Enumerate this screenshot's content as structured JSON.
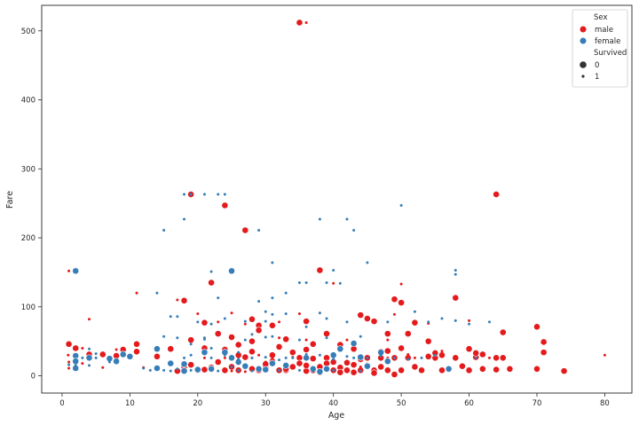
{
  "chart_data": {
    "type": "scatter",
    "xlabel": "Age",
    "ylabel": "Fare",
    "xlim": [
      -3,
      84
    ],
    "ylim": [
      -25,
      537
    ],
    "xticks": [
      0,
      10,
      20,
      30,
      40,
      50,
      60,
      70,
      80
    ],
    "yticks": [
      0,
      100,
      200,
      300,
      400,
      500
    ],
    "grid": false,
    "legend_position": "top-right",
    "legend": {
      "hue_title": "Sex",
      "hue_entries": [
        {
          "label": "male",
          "color": "#e41a1c"
        },
        {
          "label": "female",
          "color": "#377eb8"
        }
      ],
      "size_title": "Survived",
      "size_entries": [
        {
          "label": "0",
          "size": "large"
        },
        {
          "label": "1",
          "size": "small"
        }
      ]
    },
    "series": [
      {
        "name": "male",
        "survived": "0",
        "color": "#e41a1c",
        "points": [
          [
            35,
            512
          ],
          [
            19,
            263
          ],
          [
            64,
            263
          ],
          [
            24,
            247
          ],
          [
            27,
            211
          ],
          [
            38,
            153
          ],
          [
            22,
            135
          ],
          [
            58,
            113
          ],
          [
            49,
            111
          ],
          [
            50,
            106
          ],
          [
            18,
            109
          ],
          [
            28,
            82
          ],
          [
            45,
            83
          ],
          [
            44,
            88
          ],
          [
            46,
            79
          ],
          [
            36,
            79
          ],
          [
            21,
            77
          ],
          [
            29,
            73
          ],
          [
            70,
            71
          ],
          [
            31,
            73
          ],
          [
            2,
            40
          ],
          [
            1,
            46
          ],
          [
            4,
            31
          ],
          [
            6,
            31
          ],
          [
            8,
            29
          ],
          [
            9,
            38
          ],
          [
            11,
            46
          ],
          [
            11,
            35
          ],
          [
            14,
            28
          ],
          [
            16,
            39
          ],
          [
            19,
            52
          ],
          [
            23,
            61
          ],
          [
            25,
            56
          ],
          [
            28,
            50
          ],
          [
            29,
            66
          ],
          [
            33,
            53
          ],
          [
            37,
            46
          ],
          [
            39,
            61
          ],
          [
            41,
            45
          ],
          [
            43,
            39
          ],
          [
            47,
            26
          ],
          [
            48,
            61
          ],
          [
            51,
            61
          ],
          [
            52,
            77
          ],
          [
            54,
            50
          ],
          [
            55,
            26
          ],
          [
            56,
            30
          ],
          [
            57,
            10
          ],
          [
            58,
            26
          ],
          [
            59,
            14
          ],
          [
            60,
            39
          ],
          [
            61,
            27
          ],
          [
            62,
            31
          ],
          [
            64,
            26
          ],
          [
            65,
            63
          ],
          [
            65,
            26
          ],
          [
            66,
            10
          ],
          [
            70,
            10
          ],
          [
            71,
            49
          ],
          [
            71,
            34
          ],
          [
            74,
            7
          ],
          [
            17,
            7
          ],
          [
            18,
            13
          ],
          [
            20,
            8
          ],
          [
            21,
            9
          ],
          [
            22,
            12
          ],
          [
            24,
            8
          ],
          [
            25,
            13
          ],
          [
            26,
            8
          ],
          [
            27,
            27
          ],
          [
            28,
            10
          ],
          [
            29,
            8
          ],
          [
            30,
            13
          ],
          [
            31,
            21
          ],
          [
            32,
            8
          ],
          [
            33,
            8
          ],
          [
            34,
            13
          ],
          [
            35,
            26
          ],
          [
            36,
            7
          ],
          [
            37,
            8
          ],
          [
            38,
            13
          ],
          [
            39,
            26
          ],
          [
            40,
            8
          ],
          [
            41,
            12
          ],
          [
            42,
            8
          ],
          [
            43,
            16
          ],
          [
            44,
            8
          ],
          [
            45,
            26
          ],
          [
            46,
            8
          ],
          [
            47,
            13
          ],
          [
            48,
            8
          ],
          [
            49,
            26
          ],
          [
            50,
            8
          ],
          [
            51,
            26
          ],
          [
            52,
            13
          ],
          [
            53,
            8
          ],
          [
            54,
            28
          ],
          [
            55,
            33
          ],
          [
            56,
            8
          ],
          [
            60,
            8
          ],
          [
            61,
            33
          ],
          [
            62,
            10
          ],
          [
            64,
            9
          ],
          [
            26,
            30
          ],
          [
            28,
            35
          ],
          [
            31,
            30
          ],
          [
            34,
            34
          ],
          [
            36,
            38
          ],
          [
            40,
            20
          ],
          [
            42,
            19
          ],
          [
            44,
            24
          ],
          [
            47,
            35
          ],
          [
            48,
            36
          ],
          [
            50,
            40
          ],
          [
            19,
            16
          ],
          [
            21,
            40
          ],
          [
            23,
            20
          ],
          [
            24,
            38
          ],
          [
            26,
            45
          ],
          [
            30,
            17
          ],
          [
            32,
            42
          ],
          [
            35,
            18
          ],
          [
            37,
            25
          ],
          [
            38,
            5
          ],
          [
            39,
            18
          ],
          [
            40,
            30
          ],
          [
            41,
            5
          ],
          [
            43,
            5
          ],
          [
            45,
            15
          ],
          [
            46,
            4
          ],
          [
            49,
            2
          ],
          [
            33,
            10
          ],
          [
            36,
            15
          ]
        ]
      },
      {
        "name": "male",
        "survived": "1",
        "color": "#e41a1c",
        "points": [
          [
            36,
            512
          ],
          [
            1,
            152
          ],
          [
            11,
            120
          ],
          [
            4,
            82
          ],
          [
            0.9,
            30
          ],
          [
            1,
            20
          ],
          [
            1,
            11
          ],
          [
            3,
            18
          ],
          [
            3,
            40
          ],
          [
            6,
            12
          ],
          [
            8,
            38
          ],
          [
            9,
            31
          ],
          [
            12,
            12
          ],
          [
            17,
            110
          ],
          [
            20,
            90
          ],
          [
            23,
            78
          ],
          [
            25,
            91
          ],
          [
            27,
            75
          ],
          [
            29,
            30
          ],
          [
            32,
            78
          ],
          [
            32,
            55
          ],
          [
            35,
            90
          ],
          [
            35,
            26
          ],
          [
            36,
            52
          ],
          [
            40,
            134
          ],
          [
            42,
            52
          ],
          [
            48,
            52
          ],
          [
            49,
            89
          ],
          [
            50,
            133
          ],
          [
            51,
            31
          ],
          [
            52,
            26
          ],
          [
            54,
            76
          ],
          [
            56,
            36
          ],
          [
            60,
            80
          ],
          [
            63,
            26
          ],
          [
            80,
            30
          ],
          [
            26,
            17
          ],
          [
            30,
            20
          ],
          [
            34,
            27
          ],
          [
            37,
            12
          ],
          [
            44,
            13
          ],
          [
            48,
            26
          ],
          [
            34,
            13
          ],
          [
            31,
            25
          ],
          [
            28,
            26
          ],
          [
            27,
            13
          ],
          [
            27,
            6
          ],
          [
            25,
            7
          ],
          [
            21,
            26
          ],
          [
            24,
            26
          ]
        ]
      },
      {
        "name": "female",
        "survived": "0",
        "color": "#377eb8",
        "points": [
          [
            2,
            152
          ],
          [
            25,
            152
          ],
          [
            2,
            29
          ],
          [
            2,
            21
          ],
          [
            2,
            11
          ],
          [
            4,
            26
          ],
          [
            7,
            25
          ],
          [
            8,
            21
          ],
          [
            9,
            31
          ],
          [
            10,
            28
          ],
          [
            14,
            11
          ],
          [
            14,
            39
          ],
          [
            16,
            18
          ],
          [
            18,
            17
          ],
          [
            18,
            7
          ],
          [
            20,
            9
          ],
          [
            22,
            10
          ],
          [
            24,
            34
          ],
          [
            26,
            20
          ],
          [
            27,
            14
          ],
          [
            29,
            10
          ],
          [
            30,
            9
          ],
          [
            31,
            18
          ],
          [
            33,
            15
          ],
          [
            37,
            10
          ],
          [
            39,
            10
          ],
          [
            40,
            30
          ],
          [
            41,
            39
          ],
          [
            44,
            27
          ],
          [
            45,
            14
          ],
          [
            47,
            34
          ],
          [
            48,
            21
          ],
          [
            57,
            10
          ],
          [
            43,
            47
          ],
          [
            21,
            34
          ],
          [
            25,
            26
          ],
          [
            36,
            26
          ],
          [
            38,
            6
          ]
        ]
      },
      {
        "name": "female",
        "survived": "1",
        "color": "#377eb8",
        "points": [
          [
            18,
            263
          ],
          [
            19,
            263
          ],
          [
            23,
            263
          ],
          [
            24,
            263
          ],
          [
            21,
            263
          ],
          [
            18,
            227
          ],
          [
            15,
            211
          ],
          [
            29,
            211
          ],
          [
            38,
            227
          ],
          [
            42,
            227
          ],
          [
            50,
            247
          ],
          [
            43,
            211
          ],
          [
            31,
            164
          ],
          [
            45,
            164
          ],
          [
            40,
            153
          ],
          [
            22,
            151
          ],
          [
            39,
            135
          ],
          [
            41,
            134
          ],
          [
            35,
            135
          ],
          [
            33,
            120
          ],
          [
            36,
            135
          ],
          [
            14,
            120
          ],
          [
            31,
            113
          ],
          [
            29,
            108
          ],
          [
            30,
            93
          ],
          [
            16,
            86
          ],
          [
            23,
            113
          ],
          [
            22,
            75
          ],
          [
            17,
            86
          ],
          [
            20,
            78
          ],
          [
            24,
            83
          ],
          [
            27,
            79
          ],
          [
            30,
            79
          ],
          [
            31,
            89
          ],
          [
            33,
            90
          ],
          [
            36,
            71
          ],
          [
            38,
            91
          ],
          [
            39,
            83
          ],
          [
            42,
            78
          ],
          [
            44,
            57
          ],
          [
            48,
            78
          ],
          [
            52,
            93
          ],
          [
            54,
            78
          ],
          [
            56,
            83
          ],
          [
            58,
            153
          ],
          [
            58,
            147
          ],
          [
            63,
            78
          ],
          [
            60,
            75
          ],
          [
            15,
            57
          ],
          [
            17,
            55
          ],
          [
            19,
            46
          ],
          [
            21,
            53
          ],
          [
            18,
            26
          ],
          [
            22,
            26
          ],
          [
            24,
            30
          ],
          [
            26,
            24
          ],
          [
            28,
            26
          ],
          [
            30,
            27
          ],
          [
            32,
            23
          ],
          [
            34,
            26
          ],
          [
            36,
            31
          ],
          [
            38,
            30
          ],
          [
            40,
            24
          ],
          [
            42,
            28
          ],
          [
            45,
            26
          ],
          [
            47,
            29
          ],
          [
            49,
            26
          ],
          [
            51,
            24
          ],
          [
            53,
            26
          ],
          [
            4,
            15
          ],
          [
            5,
            26
          ],
          [
            7,
            20
          ],
          [
            1,
            16
          ],
          [
            2,
            15
          ],
          [
            3,
            26
          ],
          [
            4,
            39
          ],
          [
            5,
            32
          ],
          [
            12,
            11
          ],
          [
            13,
            8
          ],
          [
            15,
            8
          ],
          [
            16,
            7
          ],
          [
            17,
            10
          ],
          [
            19,
            8
          ],
          [
            23,
            7
          ],
          [
            26,
            8
          ],
          [
            28,
            7
          ],
          [
            32,
            8
          ],
          [
            35,
            8
          ],
          [
            37,
            7
          ],
          [
            40,
            8
          ],
          [
            44,
            7
          ],
          [
            55,
            30
          ],
          [
            58,
            80
          ],
          [
            61,
            26
          ],
          [
            33,
            26
          ],
          [
            25,
            13
          ],
          [
            27,
            52
          ],
          [
            21,
            55
          ],
          [
            30,
            56
          ],
          [
            35,
            52
          ],
          [
            19,
            30
          ],
          [
            22,
            40
          ],
          [
            26,
            34
          ],
          [
            28,
            60
          ],
          [
            31,
            57
          ],
          [
            39,
            55
          ],
          [
            41,
            40
          ],
          [
            43,
            26
          ]
        ]
      }
    ]
  }
}
